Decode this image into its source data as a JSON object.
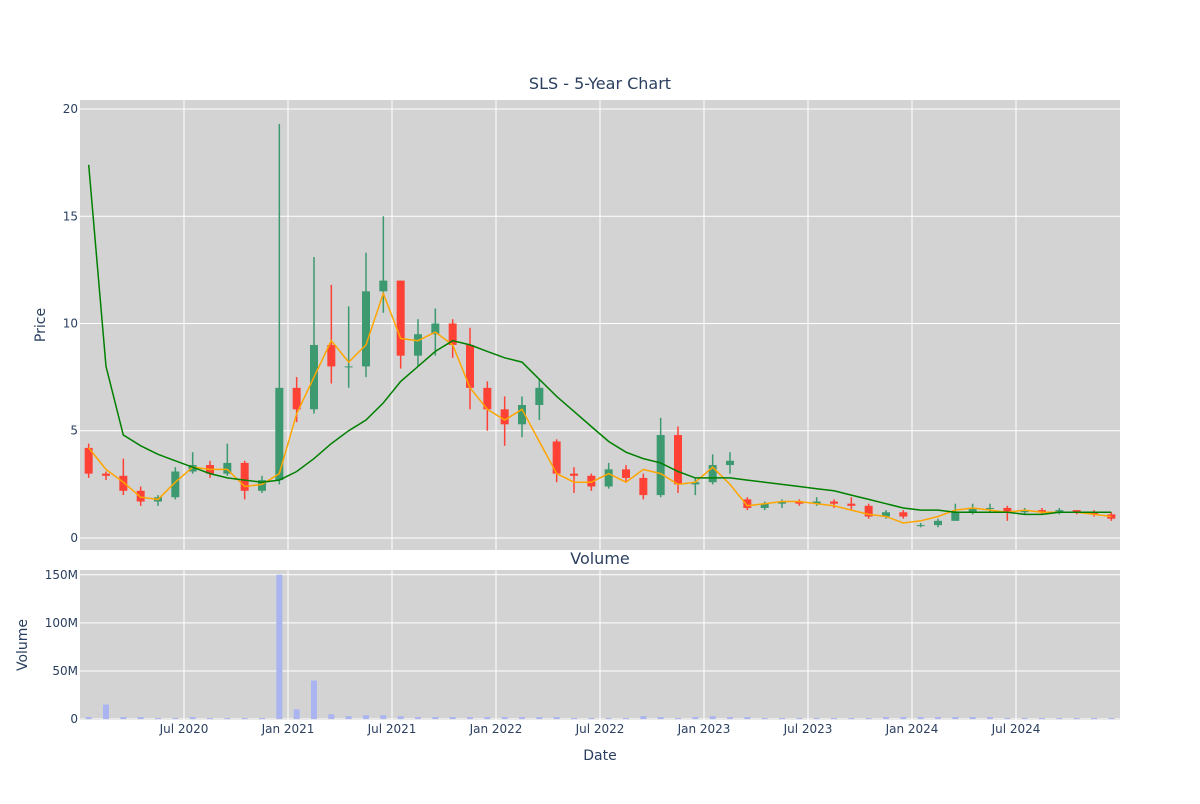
{
  "chart_data": [
    {
      "type": "candlestick",
      "title": "SLS - 5-Year Chart",
      "y_label": "Price",
      "x": [
        "2020-01",
        "2020-02",
        "2020-03",
        "2020-04",
        "2020-05",
        "2020-06",
        "2020-07",
        "2020-08",
        "2020-09",
        "2020-10",
        "2020-11",
        "2020-12",
        "2021-01",
        "2021-02",
        "2021-03",
        "2021-04",
        "2021-05",
        "2021-06",
        "2021-07",
        "2021-08",
        "2021-09",
        "2021-10",
        "2021-11",
        "2021-12",
        "2022-01",
        "2022-02",
        "2022-03",
        "2022-04",
        "2022-05",
        "2022-06",
        "2022-07",
        "2022-08",
        "2022-09",
        "2022-10",
        "2022-11",
        "2022-12",
        "2023-01",
        "2023-02",
        "2023-03",
        "2023-04",
        "2023-05",
        "2023-06",
        "2023-07",
        "2023-08",
        "2023-09",
        "2023-10",
        "2023-11",
        "2023-12",
        "2024-01",
        "2024-02",
        "2024-03",
        "2024-04",
        "2024-05",
        "2024-06",
        "2024-07",
        "2024-08",
        "2024-09",
        "2024-10",
        "2024-11",
        "2024-12"
      ],
      "open": [
        4.2,
        3.0,
        2.9,
        2.2,
        1.7,
        1.9,
        3.1,
        3.4,
        3.0,
        3.5,
        2.2,
        2.7,
        7.0,
        6.0,
        9.0,
        8.0,
        8.0,
        11.5,
        12.0,
        8.5,
        9.5,
        10.0,
        9.0,
        7.0,
        6.0,
        5.3,
        6.2,
        4.5,
        3.0,
        2.9,
        2.4,
        3.2,
        2.8,
        2.0,
        4.8,
        2.5,
        2.6,
        3.4,
        1.8,
        1.4,
        1.6,
        1.7,
        1.6,
        1.7,
        1.6,
        1.5,
        1.0,
        1.2,
        0.6,
        0.6,
        0.8,
        1.2,
        1.4,
        1.4,
        1.2,
        1.3,
        1.2,
        1.3,
        1.2,
        1.1
      ],
      "high": [
        4.4,
        3.1,
        3.7,
        2.4,
        2.0,
        3.3,
        4.0,
        3.6,
        4.4,
        3.6,
        2.9,
        19.3,
        7.5,
        13.1,
        11.8,
        10.8,
        13.3,
        15.0,
        12.0,
        10.2,
        10.7,
        10.2,
        9.8,
        7.3,
        6.6,
        6.6,
        7.4,
        4.6,
        3.3,
        3.0,
        3.5,
        3.4,
        3.0,
        5.6,
        5.2,
        2.8,
        3.9,
        4.0,
        1.9,
        1.7,
        1.8,
        1.8,
        1.9,
        1.8,
        1.9,
        1.6,
        1.3,
        1.3,
        0.7,
        0.9,
        1.6,
        1.6,
        1.6,
        1.5,
        1.4,
        1.4,
        1.4,
        1.3,
        1.3,
        1.2
      ],
      "low": [
        2.8,
        2.7,
        2.0,
        1.5,
        1.5,
        1.8,
        3.0,
        2.8,
        2.9,
        1.8,
        2.1,
        2.5,
        5.4,
        5.8,
        7.2,
        7.0,
        7.5,
        10.5,
        7.9,
        8.0,
        8.5,
        8.4,
        6.0,
        5.0,
        4.3,
        4.7,
        5.5,
        2.6,
        2.1,
        2.2,
        2.3,
        2.6,
        1.8,
        1.9,
        2.1,
        2.0,
        2.5,
        3.0,
        1.3,
        1.3,
        1.4,
        1.5,
        1.5,
        1.4,
        1.3,
        0.9,
        0.9,
        0.9,
        0.5,
        0.5,
        0.8,
        1.1,
        1.2,
        0.8,
        1.1,
        1.1,
        1.1,
        1.1,
        1.0,
        0.8
      ],
      "close": [
        3.0,
        2.9,
        2.2,
        1.7,
        1.9,
        3.1,
        3.4,
        3.0,
        3.5,
        2.2,
        2.7,
        7.0,
        6.0,
        9.0,
        8.0,
        8.0,
        11.5,
        12.0,
        8.5,
        9.5,
        10.0,
        9.0,
        7.0,
        6.0,
        5.3,
        6.2,
        7.0,
        3.0,
        2.9,
        2.4,
        3.2,
        2.8,
        2.0,
        4.8,
        2.5,
        2.6,
        3.4,
        3.6,
        1.4,
        1.6,
        1.7,
        1.6,
        1.7,
        1.6,
        1.5,
        1.0,
        1.2,
        1.0,
        0.6,
        0.8,
        1.2,
        1.4,
        1.4,
        1.2,
        1.3,
        1.2,
        1.3,
        1.2,
        1.1,
        0.9
      ],
      "increasing_color": "#3d9970",
      "decreasing_color": "#ff4136",
      "lines": [
        {
          "color": "orange",
          "values": [
            4.2,
            3.2,
            2.6,
            1.9,
            1.8,
            2.6,
            3.3,
            3.2,
            3.2,
            2.4,
            2.5,
            3.0,
            5.8,
            7.5,
            9.2,
            8.2,
            9.0,
            11.4,
            9.3,
            9.2,
            9.6,
            9.0,
            7.0,
            6.0,
            5.5,
            6.0,
            4.5,
            3.0,
            2.6,
            2.6,
            3.0,
            2.6,
            3.2,
            3.0,
            2.5,
            2.6,
            3.3,
            2.5,
            1.5,
            1.6,
            1.7,
            1.7,
            1.6,
            1.5,
            1.3,
            1.1,
            1.0,
            0.7,
            0.8,
            1.0,
            1.3,
            1.4,
            1.3,
            1.2,
            1.3,
            1.2,
            1.2,
            1.2,
            1.1,
            1.0
          ]
        },
        {
          "color": "green",
          "values": [
            17.4,
            8,
            4.8,
            4.3,
            3.9,
            3.6,
            3.3,
            3.0,
            2.8,
            2.7,
            2.6,
            2.7,
            3.1,
            3.7,
            4.4,
            5.0,
            5.5,
            6.3,
            7.3,
            8.0,
            8.7,
            9.2,
            9.0,
            8.7,
            8.4,
            8.2,
            7.4,
            6.6,
            5.9,
            5.2,
            4.5,
            4.0,
            3.7,
            3.5,
            3.1,
            2.8,
            2.8,
            2.8,
            2.7,
            2.6,
            2.5,
            2.4,
            2.3,
            2.2,
            2.0,
            1.8,
            1.6,
            1.4,
            1.3,
            1.3,
            1.2,
            1.2,
            1.2,
            1.2,
            1.1,
            1.1,
            1.2,
            1.2,
            1.2,
            1.2
          ]
        }
      ],
      "ylim": [
        -0.56,
        20.42
      ],
      "yticks": [
        0,
        5,
        10,
        15,
        20
      ],
      "grid": true
    },
    {
      "type": "bar",
      "title": "Volume",
      "y_label": "Volume",
      "x_label": "Date",
      "x": [
        "2020-01",
        "2020-02",
        "2020-03",
        "2020-04",
        "2020-05",
        "2020-06",
        "2020-07",
        "2020-08",
        "2020-09",
        "2020-10",
        "2020-11",
        "2020-12",
        "2021-01",
        "2021-02",
        "2021-03",
        "2021-04",
        "2021-05",
        "2021-06",
        "2021-07",
        "2021-08",
        "2021-09",
        "2021-10",
        "2021-11",
        "2021-12",
        "2022-01",
        "2022-02",
        "2022-03",
        "2022-04",
        "2022-05",
        "2022-06",
        "2022-07",
        "2022-08",
        "2022-09",
        "2022-10",
        "2022-11",
        "2022-12",
        "2023-01",
        "2023-02",
        "2023-03",
        "2023-04",
        "2023-05",
        "2023-06",
        "2023-07",
        "2023-08",
        "2023-09",
        "2023-10",
        "2023-11",
        "2023-12",
        "2024-01",
        "2024-02",
        "2024-03",
        "2024-04",
        "2024-05",
        "2024-06",
        "2024-07",
        "2024-08",
        "2024-09",
        "2024-10",
        "2024-11",
        "2024-12"
      ],
      "values": [
        2000000,
        15000000,
        2000000,
        2000000,
        1000000,
        1000000,
        2000000,
        1000000,
        1000000,
        1000000,
        1000000,
        150000000,
        10000000,
        40000000,
        5000000,
        3000000,
        4000000,
        4000000,
        3000000,
        2000000,
        2000000,
        2000000,
        2000000,
        2000000,
        2000000,
        2000000,
        2000000,
        2000000,
        1000000,
        1000000,
        1000000,
        1000000,
        3000000,
        2000000,
        1000000,
        2000000,
        3000000,
        2000000,
        2000000,
        1000000,
        1000000,
        1000000,
        1000000,
        1000000,
        1000000,
        1000000,
        2000000,
        2000000,
        2000000,
        2000000,
        2000000,
        2000000,
        2000000,
        1000000,
        1000000,
        1000000,
        1000000,
        1000000,
        1000000,
        1000000
      ],
      "color": "#aab4f0",
      "ylim": [
        -1000000,
        155000000
      ],
      "yticks": [
        0,
        {
          "value": 50000000,
          "label": "50M"
        },
        {
          "value": 100000000,
          "label": "100M"
        },
        {
          "value": 150000000,
          "label": "150M"
        }
      ],
      "xlim": [
        "2020-01",
        "2025-01"
      ],
      "xticks": [
        {
          "value": "2020-07",
          "label": "Jul 2020"
        },
        {
          "value": "2021-01",
          "label": "Jan 2021"
        },
        {
          "value": "2021-07",
          "label": "Jul 2021"
        },
        {
          "value": "2022-01",
          "label": "Jan 2022"
        },
        {
          "value": "2022-07",
          "label": "Jul 2022"
        },
        {
          "value": "2023-01",
          "label": "Jan 2023"
        },
        {
          "value": "2023-07",
          "label": "Jul 2023"
        },
        {
          "value": "2024-01",
          "label": "Jan 2024"
        },
        {
          "value": "2024-07",
          "label": "Jul 2024"
        }
      ],
      "grid": true
    }
  ]
}
